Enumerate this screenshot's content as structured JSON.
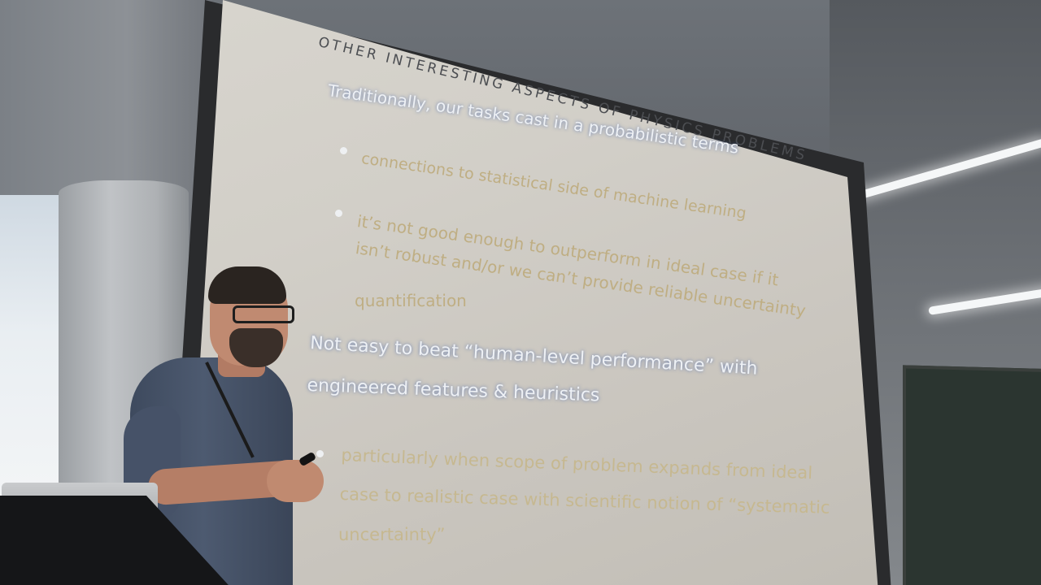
{
  "slide": {
    "title": "OTHER INTERESTING ASPECTS OF PHYSICS PROBLEMS",
    "heading_1": "Traditionally, our tasks cast in a probabilistic terms",
    "bullets_1": [
      "connections to statistical side of machine learning",
      "it’s not good enough to outperform in ideal case if it",
      "isn’t robust and/or we can’t provide reliable uncertainty",
      "quantification"
    ],
    "heading_2": [
      "Not easy to beat “human-level performance” with",
      "engineered features & heuristics"
    ],
    "bullets_2": [
      "particularly when scope of problem expands from ideal",
      "case to realistic case with scientific notion of “systematic",
      "uncertainty”"
    ]
  },
  "colors": {
    "screen": "#d2cfc8",
    "heading_text": "#eef1f5",
    "bullet_text": "#bfae83",
    "title_text": "#4c4e52"
  }
}
